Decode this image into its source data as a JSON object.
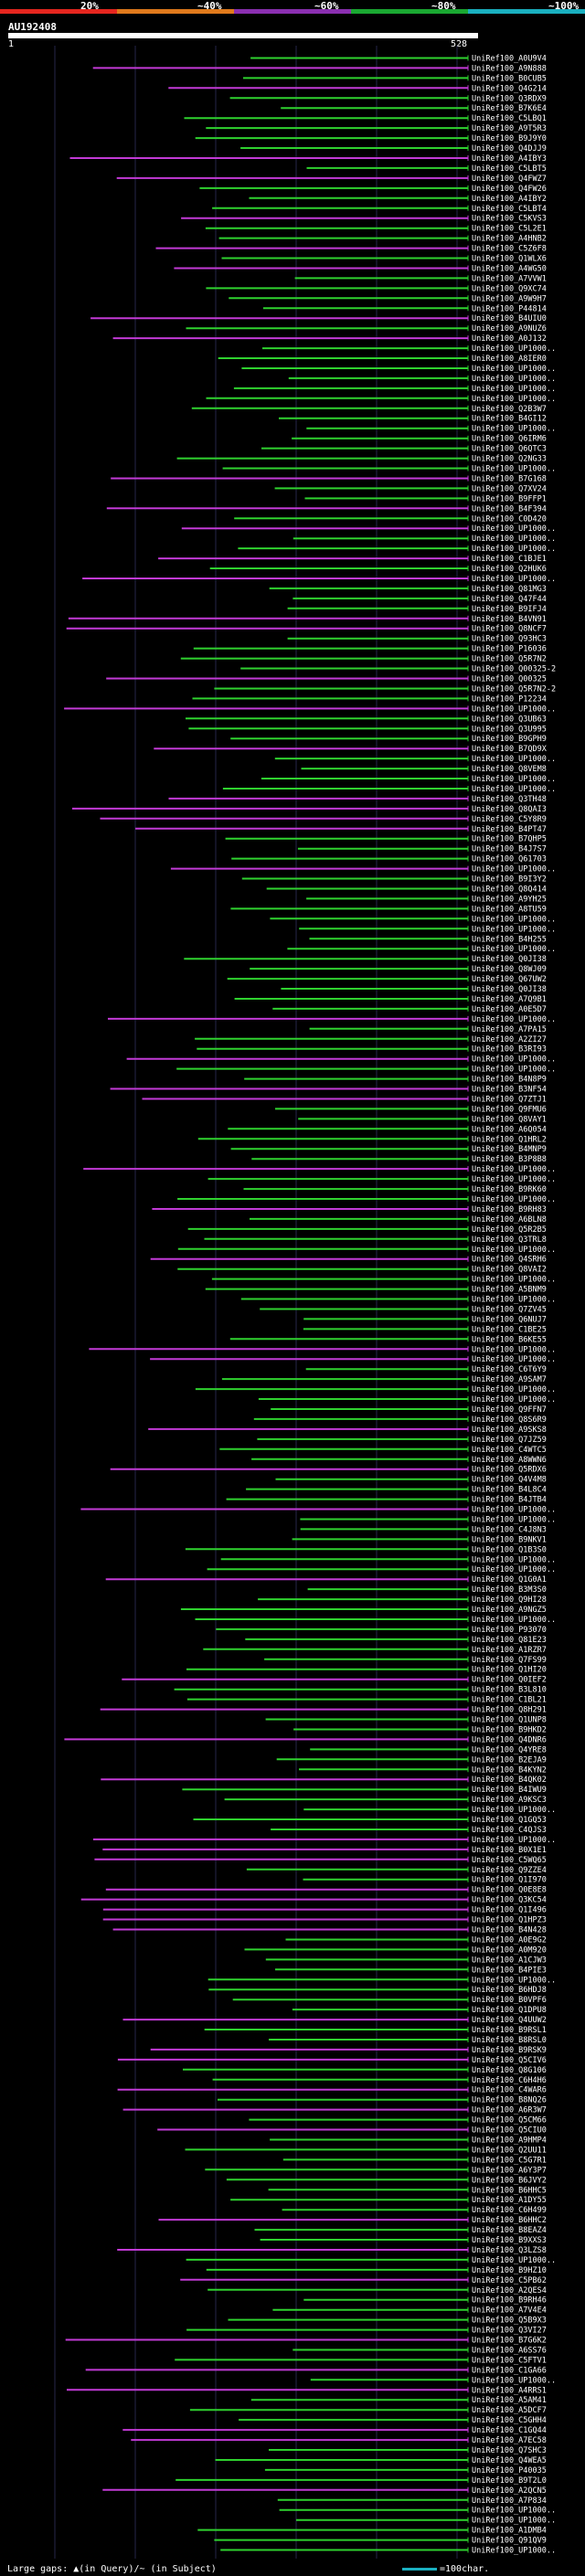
{
  "scale": {
    "labels": [
      "20%",
      "~40%",
      "~60%",
      "~80%",
      "~100%"
    ],
    "colors": [
      "#e6261f",
      "#e07a1c",
      "#8a2fb0",
      "#1aa832",
      "#1ab0c0"
    ]
  },
  "query": {
    "name": "AU192408",
    "start": "1",
    "end": "528"
  },
  "colors": {
    "green": "#2fd22f",
    "magenta": "#c23ad6",
    "grid": "#26264a",
    "label": "#ffffff"
  },
  "hits": [
    "UniRef100_A0U9V4",
    "UniRef100_A9N888",
    "UniRef100_B0CUB5",
    "UniRef100_Q4G214",
    "UniRef100_Q3RDX9",
    "UniRef100_B7K6E4",
    "UniRef100_C5LBQ1",
    "UniRef100_A9T5R3",
    "UniRef100_B9J9Y0",
    "UniRef100_Q4DJJ9",
    "UniRef100_A4IBY3",
    "UniRef100_C5LBT5",
    "UniRef100_Q4FWZ7",
    "UniRef100_Q4FW26",
    "UniRef100_A4IBY2",
    "UniRef100_C5LBT4",
    "UniRef100_C5KVS3",
    "UniRef100_C5L2E1",
    "UniRef100_A4HNB2",
    "UniRef100_C5Z6F8",
    "UniRef100_Q1WLX6",
    "UniRef100_A4WG50",
    "UniRef100_A7VVW1",
    "UniRef100_Q9XC74",
    "UniRef100_A9W9H7",
    "UniRef100_P44814",
    "UniRef100_B4UIU0",
    "UniRef100_A9NUZ6",
    "UniRef100_A0J132",
    "UniRef100_UP1000..",
    "UniRef100_A8IER0",
    "UniRef100_UP1000..",
    "UniRef100_UP1000..",
    "UniRef100_UP1000..",
    "UniRef100_UP1000..",
    "UniRef100_Q2B3W7",
    "UniRef100_B4GI12",
    "UniRef100_UP1000..",
    "UniRef100_Q6IRM6",
    "UniRef100_Q6QTC3",
    "UniRef100_Q2NG33",
    "UniRef100_UP1000..",
    "UniRef100_B7G168",
    "UniRef100_Q7XV24",
    "UniRef100_B9FFP1",
    "UniRef100_B4F394",
    "UniRef100_C0D420",
    "UniRef100_UP1000..",
    "UniRef100_UP1000..",
    "UniRef100_UP1000..",
    "UniRef100_C1BJE1",
    "UniRef100_Q2HUK6",
    "UniRef100_UP1000..",
    "UniRef100_Q81MG3",
    "UniRef100_Q47F44",
    "UniRef100_B9IFJ4",
    "UniRef100_B4VN91",
    "UniRef100_Q8NCF7",
    "UniRef100_Q93HC3",
    "UniRef100_P16036",
    "UniRef100_Q5R7N2",
    "UniRef100_Q00325-2",
    "UniRef100_Q00325",
    "UniRef100_Q5R7N2-2",
    "UniRef100_P12234",
    "UniRef100_UP1000..",
    "UniRef100_Q3UB63",
    "UniRef100_Q3U995",
    "UniRef100_B9GPH9",
    "UniRef100_B7QD9X",
    "UniRef100_UP1000..",
    "UniRef100_Q8VEM8",
    "UniRef100_UP1000..",
    "UniRef100_UP1000..",
    "UniRef100_Q3TH48",
    "UniRef100_Q8QAI3",
    "UniRef100_C5Y8R9",
    "UniRef100_B4PT47",
    "UniRef100_B7QHP5",
    "UniRef100_B4J7S7",
    "UniRef100_Q61703",
    "UniRef100_UP1000..",
    "UniRef100_B9I3Y2",
    "UniRef100_Q8Q414",
    "UniRef100_A9YH25",
    "UniRef100_A8TU59",
    "UniRef100_UP1000..",
    "UniRef100_UP1000..",
    "UniRef100_B4H255",
    "UniRef100_UP1000..",
    "UniRef100_Q0JI38",
    "UniRef100_Q8WJ09",
    "UniRef100_Q67UW2",
    "UniRef100_Q0JI38",
    "UniRef100_A7Q9B1",
    "UniRef100_A0E5D7",
    "UniRef100_UP1000..",
    "UniRef100_A7PA15",
    "UniRef100_A2ZI27",
    "UniRef100_B3RI93",
    "UniRef100_UP1000..",
    "UniRef100_UP1000..",
    "UniRef100_B4N8P9",
    "UniRef100_B3NF54",
    "UniRef100_Q7ZTJ1",
    "UniRef100_Q9FMU6",
    "UniRef100_Q8VAY1",
    "UniRef100_A6Q054",
    "UniRef100_Q1HRL2",
    "UniRef100_B4MNP9",
    "UniRef100_B3P8B8",
    "UniRef100_UP1000..",
    "UniRef100_UP1000..",
    "UniRef100_B9RK60",
    "UniRef100_UP1000..",
    "UniRef100_B9RH83",
    "UniRef100_A6BLN8",
    "UniRef100_Q5R2B5",
    "UniRef100_Q3TRL8",
    "UniRef100_UP1000..",
    "UniRef100_Q4SRH6",
    "UniRef100_Q8VAI2",
    "UniRef100_UP1000..",
    "UniRef100_A5BNM9",
    "UniRef100_UP1000..",
    "UniRef100_Q7ZV45",
    "UniRef100_Q6NUJ7",
    "UniRef100_C1BE25",
    "UniRef100_B6KE55",
    "UniRef100_UP1000..",
    "UniRef100_UP1000..",
    "UniRef100_C6T6Y9",
    "UniRef100_A9SAM7",
    "UniRef100_UP1000..",
    "UniRef100_UP1000..",
    "UniRef100_Q9FFN7",
    "UniRef100_Q8S6R9",
    "UniRef100_A9SKS8",
    "UniRef100_Q7JZ59",
    "UniRef100_C4WTC5",
    "UniRef100_A8WWN6",
    "UniRef100_Q5RDX6",
    "UniRef100_Q4V4M8",
    "UniRef100_B4L8C4",
    "UniRef100_B4JTB4",
    "UniRef100_UP1000..",
    "UniRef100_UP1000..",
    "UniRef100_C4J8N3",
    "UniRef100_B9NKV1",
    "UniRef100_Q1B3S0",
    "UniRef100_UP1000..",
    "UniRef100_UP1000..",
    "UniRef100_Q1G0A1",
    "UniRef100_B3M3S0",
    "UniRef100_Q9HI28",
    "UniRef100_A9NGZ5",
    "UniRef100_UP1000..",
    "UniRef100_P93070",
    "UniRef100_Q81E23",
    "UniRef100_A1RZR7",
    "UniRef100_Q7FS99",
    "UniRef100_Q1HI20",
    "UniRef100_Q0IEF2",
    "UniRef100_B3L810",
    "UniRef100_C1BL21",
    "UniRef100_Q8H291",
    "UniRef100_Q1UNP8",
    "UniRef100_B9HKD2",
    "UniRef100_Q4DNR6",
    "UniRef100_Q4YRE8",
    "UniRef100_B2EJA9",
    "UniRef100_B4KYN2",
    "UniRef100_B4QK02",
    "UniRef100_B4IWU9",
    "UniRef100_A9KSC3",
    "UniRef100_UP1000..",
    "UniRef100_Q1GQ53",
    "UniRef100_C4QJS3",
    "UniRef100_UP1000..",
    "UniRef100_B0X1E1",
    "UniRef100_C5WQ65",
    "UniRef100_Q9ZZE4",
    "UniRef100_Q1I970",
    "UniRef100_Q0E8E8",
    "UniRef100_Q3KC54",
    "UniRef100_Q1I496",
    "UniRef100_Q1HPZ3",
    "UniRef100_B4N428",
    "UniRef100_A0E9G2",
    "UniRef100_A0M920",
    "UniRef100_A1CJW3",
    "UniRef100_B4PIE3",
    "UniRef100_UP1000..",
    "UniRef100_B6HDJ8",
    "UniRef100_B0VPF6",
    "UniRef100_Q1DPU8",
    "UniRef100_Q4UUW2",
    "UniRef100_B9RSL1",
    "UniRef100_B8RSL0",
    "UniRef100_B9RSK9",
    "UniRef100_Q5CIV6",
    "UniRef100_Q8G106",
    "UniRef100_C6H4H6",
    "UniRef100_C4WAR6",
    "UniRef100_B8NQ26",
    "UniRef100_A6R3W7",
    "UniRef100_Q5CM66",
    "UniRef100_Q5CIU0",
    "UniRef100_A9HMP4",
    "UniRef100_Q2UU11",
    "UniRef100_C5G7R1",
    "UniRef100_A6Y3P7",
    "UniRef100_B6JVY2",
    "UniRef100_B6HHC5",
    "UniRef100_A1DY55",
    "UniRef100_C6H499",
    "UniRef100_B6HHC2",
    "UniRef100_B8EAZ4",
    "UniRef100_B9XXS3",
    "UniRef100_Q3LZS8",
    "UniRef100_UP1000..",
    "UniRef100_B9HZ10",
    "UniRef100_C5PB62",
    "UniRef100_A2QES4",
    "UniRef100_B9RH46",
    "UniRef100_A7V4E4",
    "UniRef100_Q5B9X3",
    "UniRef100_Q3VI27",
    "UniRef100_B7G6K2",
    "UniRef100_A6SS76",
    "UniRef100_C5FTV1",
    "UniRef100_C1GA66",
    "UniRef100_UP1000..",
    "UniRef100_A4RRS1",
    "UniRef100_A5AM41",
    "UniRef100_A5DCF7",
    "UniRef100_C5GHH4",
    "UniRef100_C1GQ44",
    "UniRef100_A7EC58",
    "UniRef100_Q7SHC3",
    "UniRef100_Q4WEA5",
    "UniRef100_P40035",
    "UniRef100_B9T2L0",
    "UniRef100_A2QCN5",
    "UniRef100_A7P834",
    "UniRef100_UP1000..",
    "UniRef100_UP1000..",
    "UniRef100_A1DMB4",
    "UniRef100_Q91QV9",
    "UniRef100_UP1000.."
  ],
  "footer": {
    "legend_left": "Large gaps: ▲(in Query)/~ (in Subject)",
    "legend_right": "=100char."
  }
}
